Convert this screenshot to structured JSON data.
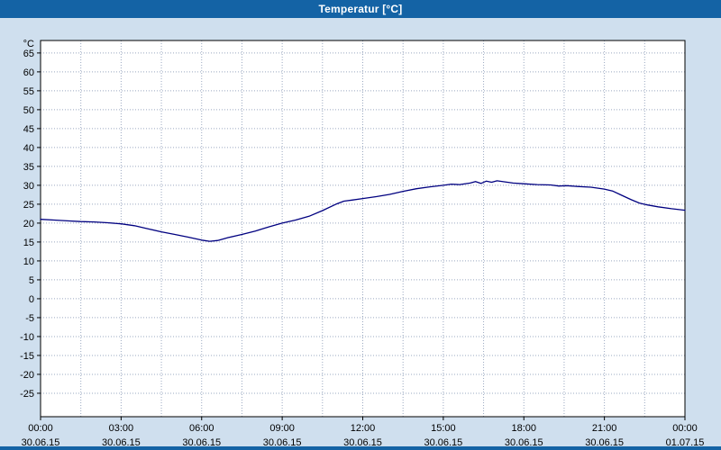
{
  "window": {
    "title": "Temperatur [°C]"
  },
  "colors": {
    "titlebar": "#1463a5",
    "titlebar_text": "#ffffff",
    "background": "#cfdfee",
    "plot_background": "#ffffff",
    "grid": "#9aa8c0",
    "axis": "#000000",
    "line": "#000080",
    "bottom_strip": "#1463a5"
  },
  "chart_data": {
    "type": "line",
    "title": "Temperatur [°C]",
    "unit": "°C",
    "xlim_hours": [
      0,
      24
    ],
    "ylim": [
      -31.2,
      68.3
    ],
    "grid_x_step_hours": 1.5,
    "grid_on": true,
    "legend": "none",
    "y_ticks": [
      65,
      60,
      55,
      50,
      45,
      40,
      35,
      30,
      25,
      20,
      15,
      10,
      5,
      0,
      -5,
      -10,
      -15,
      -20,
      -25
    ],
    "x_ticks": [
      {
        "hour": 0,
        "time": "00:00",
        "date": "30.06.15"
      },
      {
        "hour": 3,
        "time": "03:00",
        "date": "30.06.15"
      },
      {
        "hour": 6,
        "time": "06:00",
        "date": "30.06.15"
      },
      {
        "hour": 9,
        "time": "09:00",
        "date": "30.06.15"
      },
      {
        "hour": 12,
        "time": "12:00",
        "date": "30.06.15"
      },
      {
        "hour": 15,
        "time": "15:00",
        "date": "30.06.15"
      },
      {
        "hour": 18,
        "time": "18:00",
        "date": "30.06.15"
      },
      {
        "hour": 21,
        "time": "21:00",
        "date": "30.06.15"
      },
      {
        "hour": 24,
        "time": "00:00",
        "date": "01.07.15"
      }
    ],
    "series": [
      {
        "name": "Temperatur",
        "color": "#000080",
        "points": [
          [
            0,
            21.0
          ],
          [
            0.5,
            20.8
          ],
          [
            1,
            20.6
          ],
          [
            1.5,
            20.4
          ],
          [
            2,
            20.3
          ],
          [
            2.5,
            20.1
          ],
          [
            3,
            19.8
          ],
          [
            3.5,
            19.3
          ],
          [
            4,
            18.5
          ],
          [
            4.5,
            17.7
          ],
          [
            5,
            17.0
          ],
          [
            5.5,
            16.3
          ],
          [
            6,
            15.5
          ],
          [
            6.3,
            15.2
          ],
          [
            6.6,
            15.4
          ],
          [
            7,
            16.2
          ],
          [
            7.5,
            17.0
          ],
          [
            8,
            17.9
          ],
          [
            8.5,
            19.0
          ],
          [
            9,
            20.0
          ],
          [
            9.5,
            20.8
          ],
          [
            10,
            21.8
          ],
          [
            10.5,
            23.3
          ],
          [
            11,
            25.0
          ],
          [
            11.3,
            25.8
          ],
          [
            11.6,
            26.1
          ],
          [
            12,
            26.5
          ],
          [
            12.5,
            27.0
          ],
          [
            13,
            27.6
          ],
          [
            13.5,
            28.4
          ],
          [
            14,
            29.1
          ],
          [
            14.5,
            29.6
          ],
          [
            15,
            30.0
          ],
          [
            15.3,
            30.3
          ],
          [
            15.6,
            30.2
          ],
          [
            16,
            30.6
          ],
          [
            16.2,
            31.0
          ],
          [
            16.4,
            30.5
          ],
          [
            16.6,
            31.1
          ],
          [
            16.8,
            30.8
          ],
          [
            17,
            31.2
          ],
          [
            17.3,
            30.9
          ],
          [
            17.6,
            30.6
          ],
          [
            18,
            30.4
          ],
          [
            18.5,
            30.2
          ],
          [
            19,
            30.1
          ],
          [
            19.3,
            29.8
          ],
          [
            19.6,
            29.9
          ],
          [
            20,
            29.7
          ],
          [
            20.5,
            29.5
          ],
          [
            21,
            29.0
          ],
          [
            21.3,
            28.5
          ],
          [
            21.6,
            27.5
          ],
          [
            22,
            26.2
          ],
          [
            22.3,
            25.3
          ],
          [
            22.6,
            24.8
          ],
          [
            23,
            24.3
          ],
          [
            23.5,
            23.8
          ],
          [
            24,
            23.4
          ]
        ]
      }
    ]
  }
}
